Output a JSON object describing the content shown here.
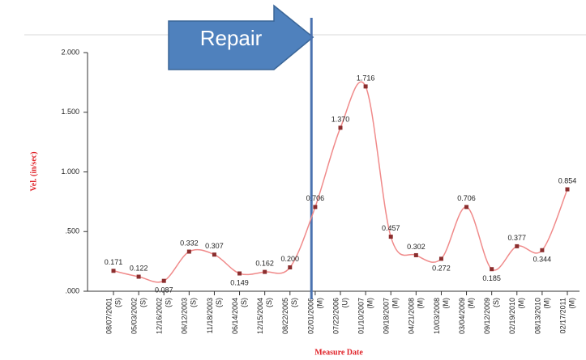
{
  "chart_data": {
    "type": "line",
    "y_label": "Vel. (in/sec)",
    "x_label": "Measure Date",
    "annotation": "Repair",
    "categories": [
      "08/07/2001",
      "05/03/2002",
      "12/16/2002",
      "06/12/2003",
      "11/18/2003",
      "06/14/2004",
      "12/15/2004",
      "08/22/2005",
      "02/01/2006",
      "07/22/2006",
      "01/10/2007",
      "09/18/2007",
      "04/21/2008",
      "10/03/2008",
      "03/04/2009",
      "09/12/2009",
      "02/19/2010",
      "08/13/2010",
      "02/17/2011"
    ],
    "category_codes": [
      "(S)",
      "(S)",
      "(S)",
      "(S)",
      "(S)",
      "(S)",
      "(S)",
      "(S)",
      "(M)",
      "(U)",
      "(M)",
      "(M)",
      "(M)",
      "(M)",
      "(M)",
      "(S)",
      "(M)",
      "(M)",
      "(M)"
    ],
    "values": [
      0.171,
      0.122,
      0.087,
      0.332,
      0.307,
      0.149,
      0.162,
      0.2,
      0.706,
      1.37,
      1.716,
      0.457,
      0.302,
      0.272,
      0.706,
      0.185,
      0.377,
      0.344,
      0.854
    ],
    "value_labels": [
      "0.171",
      "0.122",
      "0.087",
      "0.332",
      "0.307",
      "0.149",
      "0.162",
      "0.200",
      "0.706",
      "1.370",
      "1.716",
      "0.457",
      "0.302",
      "0.272",
      "0.706",
      "0.185",
      "0.377",
      "0.344",
      "0.854"
    ],
    "line_color": "#f08a8a",
    "marker_color": "#8b2e2e",
    "ylim": [
      0,
      2
    ],
    "yticks": [
      {
        "value": 0,
        "label": ".000"
      },
      {
        "value": 0.5,
        "label": ".500"
      },
      {
        "value": 1,
        "label": "1.000"
      },
      {
        "value": 1.5,
        "label": "1.500"
      },
      {
        "value": 2,
        "label": "2.000"
      }
    ]
  }
}
